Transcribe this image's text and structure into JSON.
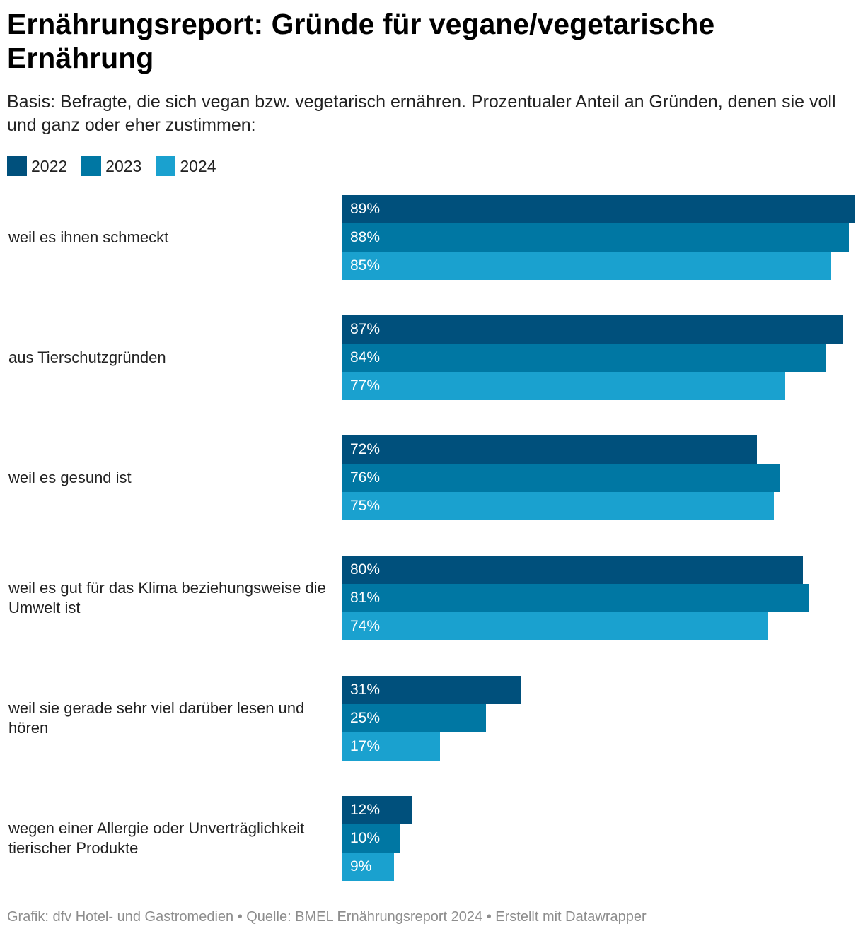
{
  "title": "Ernährungsreport: Gründe für vegane/vegetarische Ernährung",
  "subtitle": "Basis: Befragte, die sich vegan bzw. vegetarisch ernähren. Prozentualer Anteil an Gründen, denen sie voll und ganz oder eher zustimmen:",
  "footer": "Grafik: dfv Hotel- und Gastromedien • Quelle: BMEL Ernährungsreport 2024 • Erstellt mit Datawrapper",
  "chart_data": {
    "type": "bar",
    "orientation": "horizontal",
    "title": "Ernährungsreport: Gründe für vegane/vegetarische Ernährung",
    "categories": [
      "weil es ihnen schmeckt",
      "aus Tierschutzgründen",
      "weil es gesund ist",
      "weil es gut für das Klima beziehungsweise die Umwelt ist",
      "weil sie gerade sehr viel darüber lesen und hören",
      "wegen einer Allergie oder Unverträglichkeit tierischer Produkte"
    ],
    "series": [
      {
        "name": "2022",
        "color": "#00507c",
        "values": [
          89,
          87,
          72,
          80,
          31,
          12
        ]
      },
      {
        "name": "2023",
        "color": "#0077a3",
        "values": [
          88,
          84,
          76,
          81,
          25,
          10
        ]
      },
      {
        "name": "2024",
        "color": "#1aa1cf",
        "values": [
          85,
          77,
          75,
          74,
          17,
          9
        ]
      }
    ],
    "value_suffix": "%",
    "xlim": [
      0,
      89
    ],
    "legend": "top-left"
  }
}
